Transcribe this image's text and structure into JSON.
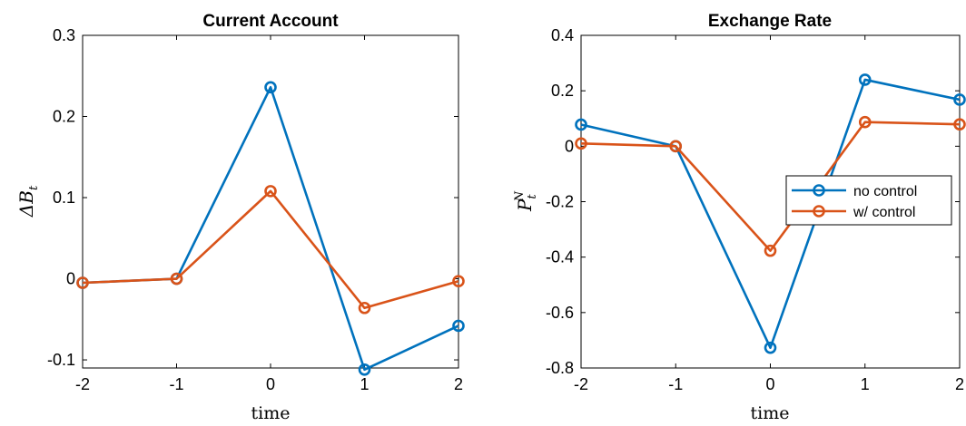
{
  "colors": {
    "no_control": "#0072BD",
    "w_control": "#D95319",
    "axis": "#000000"
  },
  "chart_data": [
    {
      "type": "line",
      "title": "Current Account",
      "xlabel": "time",
      "ylabel": "ΔB",
      "ylabel_sub": "t",
      "ylabel_sup": "",
      "xlim": [
        -2,
        2
      ],
      "ylim": [
        -0.11,
        0.3
      ],
      "xticks": [
        -2,
        -1,
        0,
        1,
        2
      ],
      "xtick_labels": [
        "-2",
        "-1",
        "0",
        "1",
        "2"
      ],
      "yticks": [
        -0.1,
        0,
        0.1,
        0.2,
        0.3
      ],
      "ytick_labels": [
        "-0.1",
        "0",
        "0.1",
        "0.2",
        "0.3"
      ],
      "grid": false,
      "x": [
        -2,
        -1,
        0,
        1,
        2
      ],
      "series": [
        {
          "key": "no_control",
          "values": [
            -0.005,
            0.0,
            0.236,
            -0.112,
            -0.058
          ]
        },
        {
          "key": "w_control",
          "values": [
            -0.005,
            0.0,
            0.108,
            -0.036,
            -0.003
          ]
        }
      ]
    },
    {
      "type": "line",
      "title": "Exchange Rate",
      "xlabel": "time",
      "ylabel": "P",
      "ylabel_sub": "t",
      "ylabel_sup": "N",
      "xlim": [
        -2,
        2
      ],
      "ylim": [
        -0.8,
        0.4
      ],
      "xticks": [
        -2,
        -1,
        0,
        1,
        2
      ],
      "xtick_labels": [
        "-2",
        "-1",
        "0",
        "1",
        "2"
      ],
      "yticks": [
        -0.8,
        -0.6,
        -0.4,
        -0.2,
        0,
        0.2,
        0.4
      ],
      "ytick_labels": [
        "-0.8",
        "-0.6",
        "-0.4",
        "-0.2",
        "0",
        "0.2",
        "0.4"
      ],
      "grid": false,
      "legend": {
        "placement": "center-right",
        "entries": [
          "no control",
          "w/ control"
        ]
      },
      "x": [
        -2,
        -1,
        0,
        1,
        2
      ],
      "series": [
        {
          "key": "no_control",
          "name": "no control",
          "values": [
            0.078,
            0.0,
            -0.727,
            0.24,
            0.168
          ]
        },
        {
          "key": "w_control",
          "name": "w/ control",
          "values": [
            0.01,
            0.0,
            -0.377,
            0.087,
            0.079
          ]
        }
      ]
    }
  ]
}
